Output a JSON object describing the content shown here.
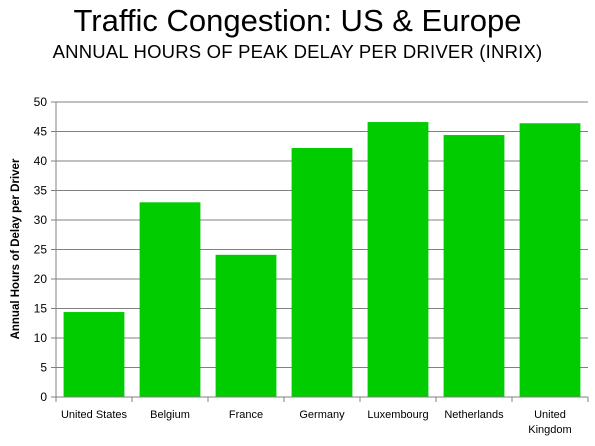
{
  "title": "Traffic Congestion: US & Europe",
  "subtitle": "ANNUAL HOURS OF PEAK DELAY PER DRIVER (INRIX)",
  "colors": {
    "bar": "#00cc00",
    "grid": "#808080",
    "axis": "#808080"
  },
  "chart_data": {
    "type": "bar",
    "categories": [
      "United States",
      "Belgium",
      "France",
      "Germany",
      "Luxembourg",
      "Netherlands",
      "United Kingdom"
    ],
    "category_lines": [
      [
        "United States"
      ],
      [
        "Belgium"
      ],
      [
        "France"
      ],
      [
        "Germany"
      ],
      [
        "Luxembourg"
      ],
      [
        "Netherlands"
      ],
      [
        "United",
        "Kingdom"
      ]
    ],
    "values": [
      14.4,
      33.0,
      24.1,
      42.2,
      46.6,
      44.4,
      46.4
    ],
    "ylabel": "Annual Hours of Delay per Driver",
    "xlabel": "",
    "ylim": [
      0,
      50
    ],
    "yticks": [
      0,
      5,
      10,
      15,
      20,
      25,
      30,
      35,
      40,
      45,
      50
    ],
    "grid": true,
    "legend": "none"
  }
}
